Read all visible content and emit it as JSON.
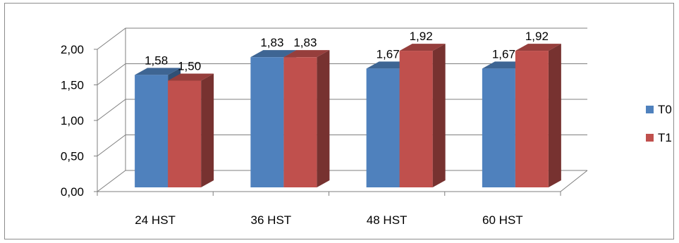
{
  "chart_data": {
    "type": "bar",
    "three_d": true,
    "categories": [
      "24 HST",
      "36 HST",
      "48 HST",
      "60 HST"
    ],
    "series": [
      {
        "name": "T0",
        "values": [
          1.58,
          1.83,
          1.67,
          1.67
        ],
        "value_labels": [
          "1,58",
          "1,83",
          "1,67",
          "1,67"
        ],
        "color": "#4f81bd"
      },
      {
        "name": "T1",
        "values": [
          1.5,
          1.83,
          1.92,
          1.92
        ],
        "value_labels": [
          "1,50",
          "1,83",
          "1,92",
          "1,92"
        ],
        "color": "#c0504d"
      }
    ],
    "ylim": [
      0,
      2.0
    ],
    "yticks": [
      0,
      0.5,
      1.0,
      1.5,
      2.0
    ],
    "ytick_labels": [
      "0,00",
      "0,50",
      "1,00",
      "1,50",
      "2,00"
    ],
    "grid": true,
    "legend_position": "right",
    "title": "",
    "xlabel": "",
    "ylabel": ""
  }
}
